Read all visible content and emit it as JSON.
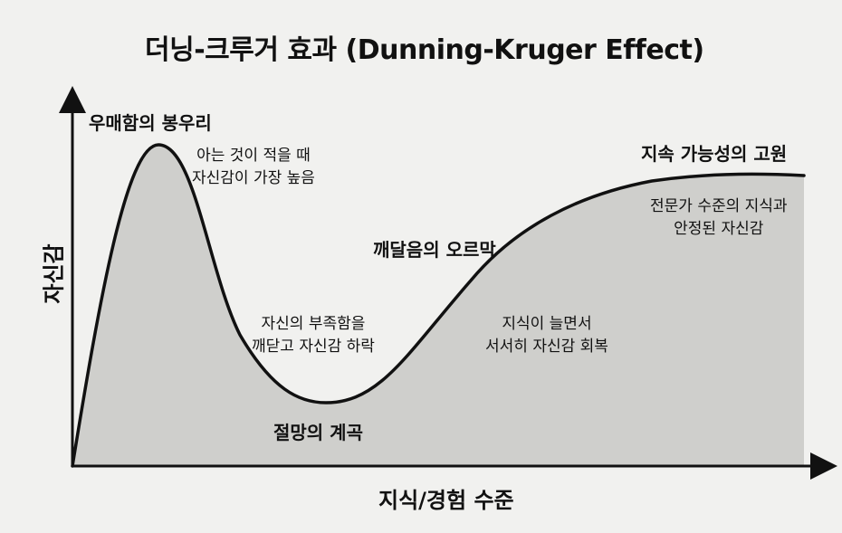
{
  "title": "더닝-크루거 효과 (Dunning-Kruger Effect)",
  "axes": {
    "y_label": "자신감",
    "x_label": "지식/경험 수준"
  },
  "stages": [
    {
      "label": "우매함의 봉우리",
      "note_lines": [
        "아는 것이 적을 때",
        "자신감이 가장 높음"
      ]
    },
    {
      "label": "절망의 계곡",
      "note_lines": [
        "자신의 부족함을",
        "깨닫고 자신감 하락"
      ]
    },
    {
      "label": "깨달음의 오르막",
      "note_lines": [
        "지식이 늘면서",
        "서서히 자신감 회복"
      ]
    },
    {
      "label": "지속 가능성의 고원",
      "note_lines": [
        "전문가 수준의 지식과",
        "안정된 자신감"
      ]
    }
  ],
  "colors": {
    "background": "#f1f1ef",
    "area_fill": "#cfcfcc",
    "curve": "#111111",
    "text": "#111111"
  }
}
